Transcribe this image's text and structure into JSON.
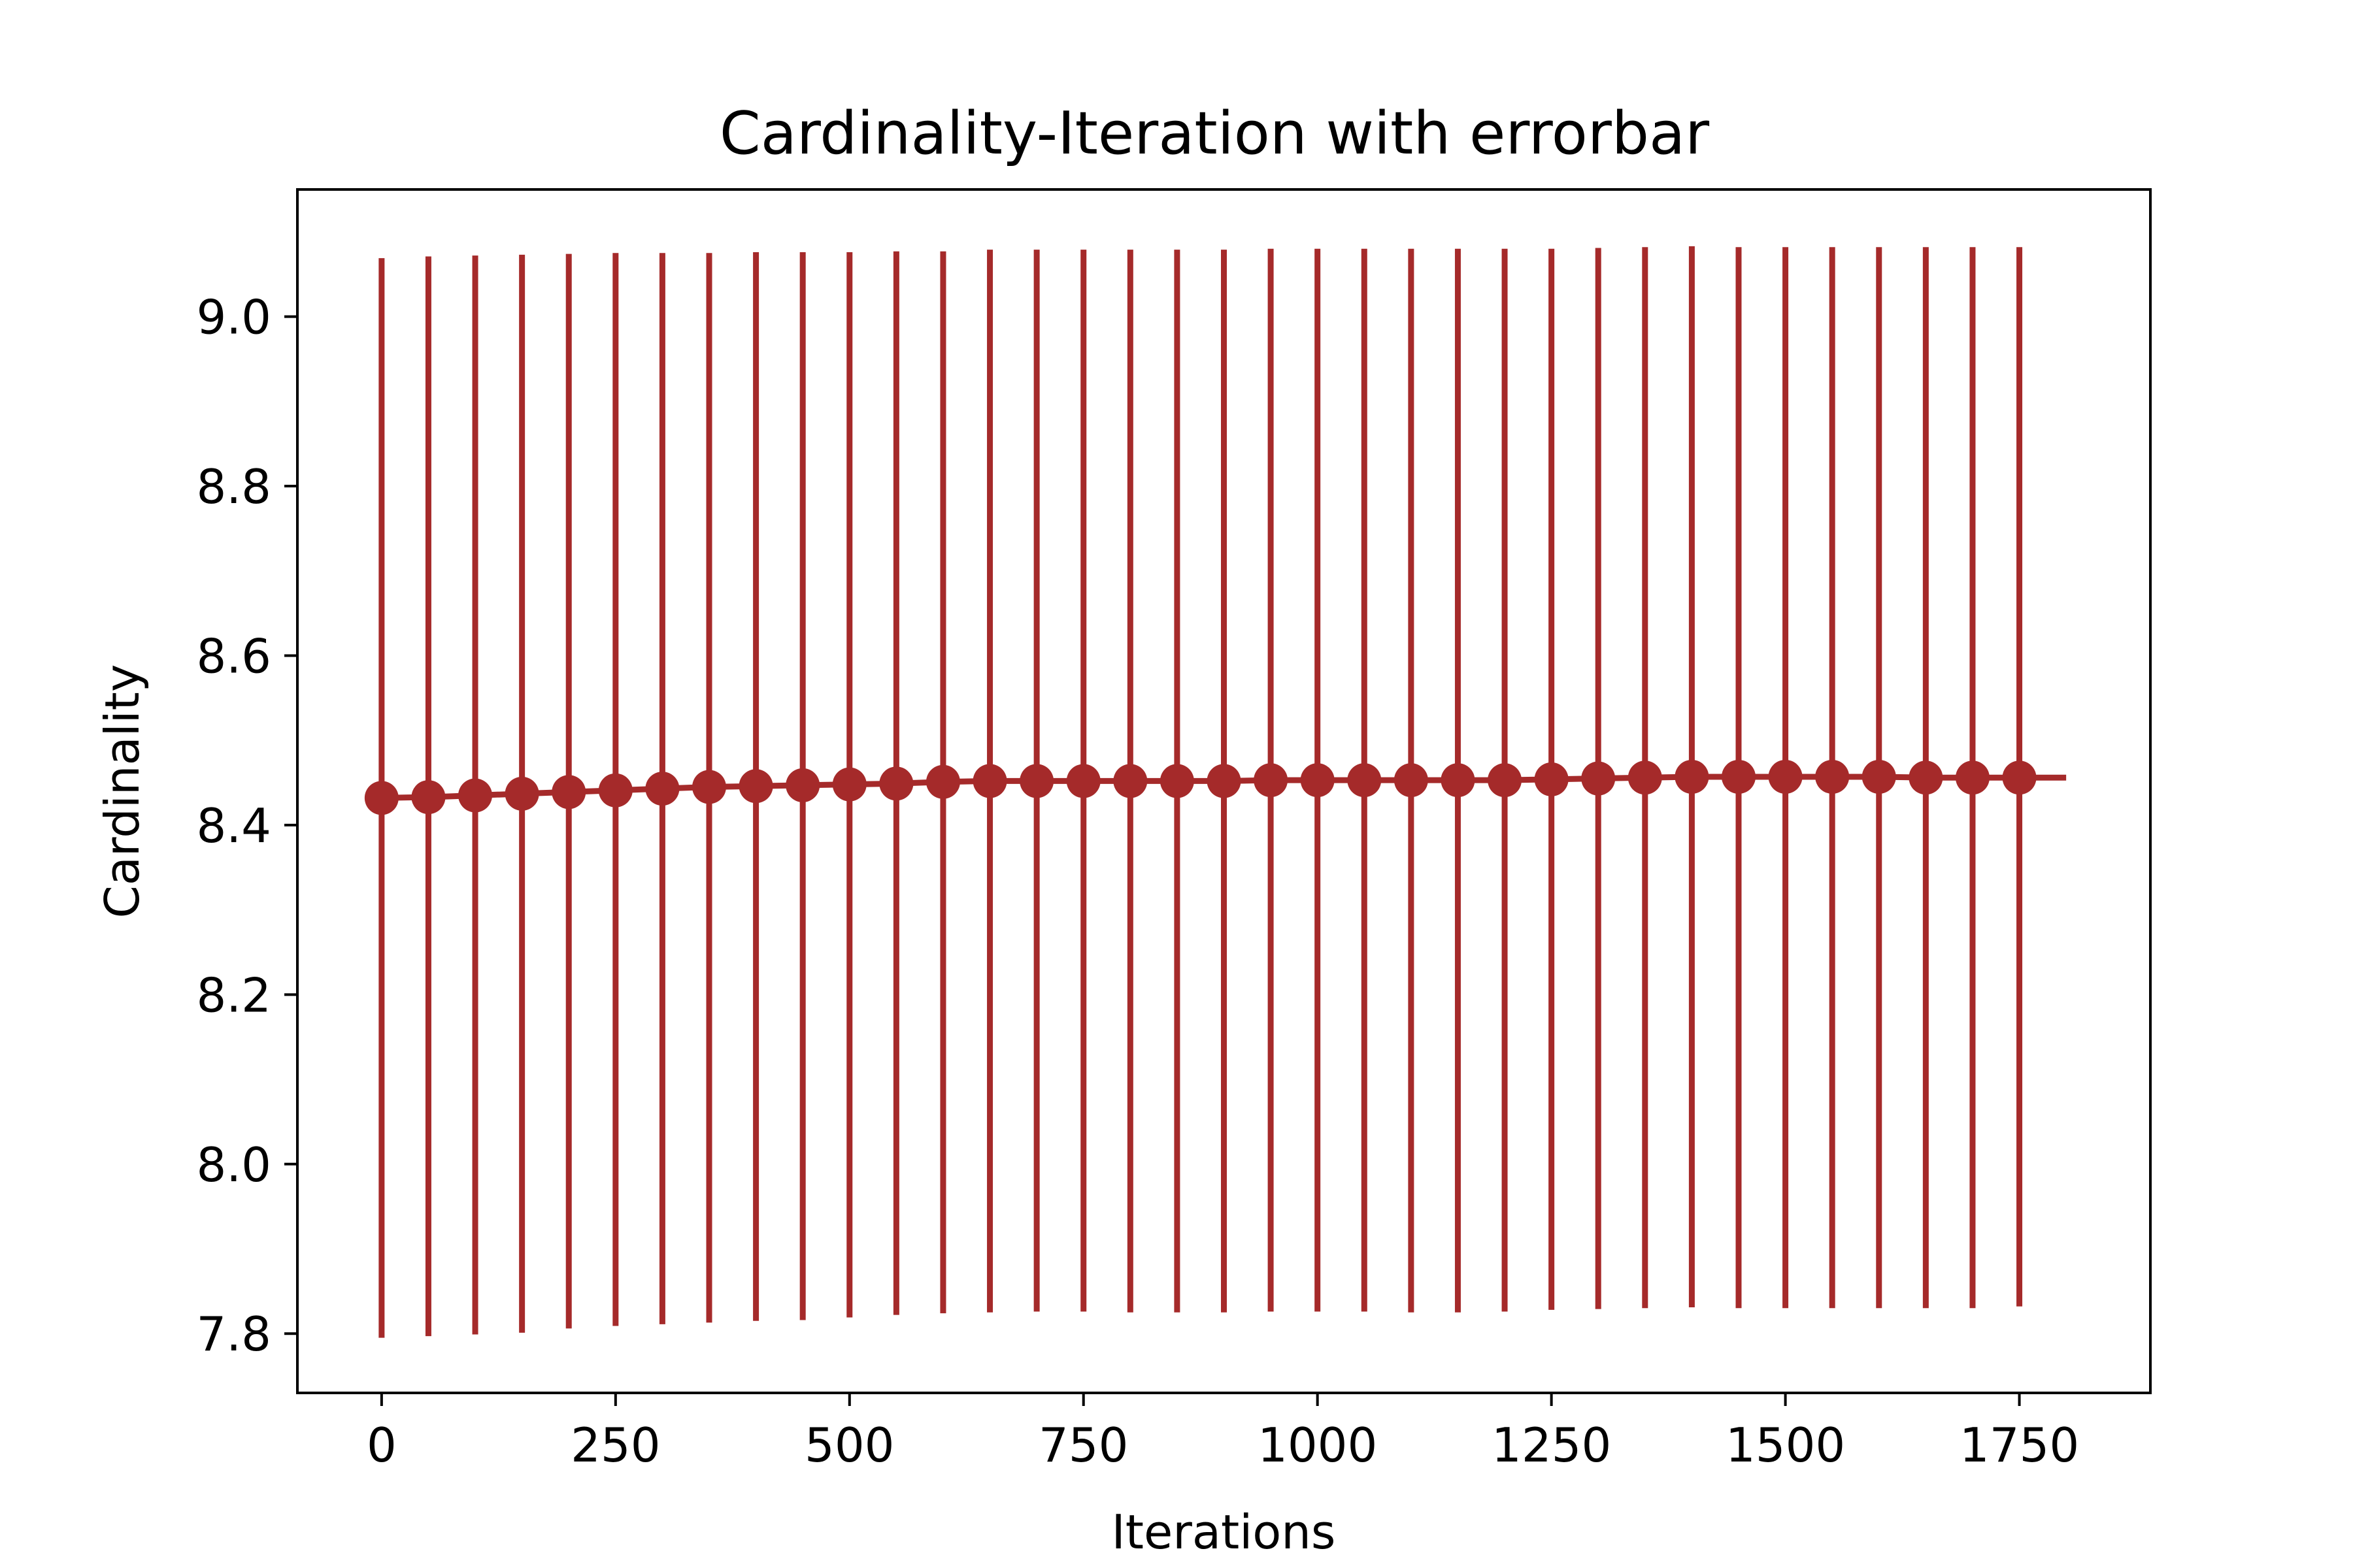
{
  "chart_data": {
    "type": "line",
    "title": "Cardinality-Iteration with errorbar",
    "xlabel": "Iterations",
    "ylabel": "Cardinality",
    "xlim": [
      -90,
      1890
    ],
    "ylim": [
      7.73,
      9.15
    ],
    "xticks": [
      0,
      250,
      500,
      750,
      1000,
      1250,
      1500,
      1750
    ],
    "xtick_labels": [
      "0",
      "250",
      "500",
      "750",
      "1000",
      "1250",
      "1500",
      "1750"
    ],
    "yticks": [
      7.8,
      8.0,
      8.2,
      8.4,
      8.6,
      8.8,
      9.0
    ],
    "ytick_labels": [
      "7.8",
      "8.0",
      "8.2",
      "8.4",
      "8.6",
      "8.8",
      "9.0"
    ],
    "grid": false,
    "legend": "none",
    "series": [
      {
        "color": "#a52a2a",
        "line_end_x": 1800,
        "x": [
          0,
          50,
          100,
          150,
          200,
          250,
          300,
          350,
          400,
          450,
          500,
          550,
          600,
          650,
          700,
          750,
          800,
          850,
          900,
          950,
          1000,
          1050,
          1100,
          1150,
          1200,
          1250,
          1300,
          1350,
          1400,
          1450,
          1500,
          1550,
          1600,
          1650,
          1700,
          1750
        ],
        "y": [
          8.432,
          8.433,
          8.435,
          8.437,
          8.439,
          8.441,
          8.443,
          8.445,
          8.446,
          8.447,
          8.448,
          8.449,
          8.451,
          8.452,
          8.452,
          8.452,
          8.452,
          8.452,
          8.452,
          8.453,
          8.453,
          8.453,
          8.453,
          8.453,
          8.453,
          8.454,
          8.455,
          8.456,
          8.457,
          8.457,
          8.457,
          8.457,
          8.457,
          8.456,
          8.456,
          8.456
        ],
        "err_low": [
          7.795,
          7.797,
          7.799,
          7.801,
          7.806,
          7.809,
          7.811,
          7.813,
          7.815,
          7.816,
          7.819,
          7.822,
          7.824,
          7.825,
          7.826,
          7.826,
          7.825,
          7.825,
          7.825,
          7.826,
          7.826,
          7.826,
          7.825,
          7.825,
          7.826,
          7.828,
          7.829,
          7.83,
          7.831,
          7.83,
          7.83,
          7.83,
          7.83,
          7.83,
          7.83,
          7.832
        ],
        "err_high": [
          9.069,
          9.071,
          9.072,
          9.073,
          9.074,
          9.075,
          9.075,
          9.075,
          9.076,
          9.076,
          9.076,
          9.077,
          9.077,
          9.079,
          9.079,
          9.079,
          9.079,
          9.079,
          9.079,
          9.08,
          9.08,
          9.08,
          9.08,
          9.08,
          9.08,
          9.08,
          9.081,
          9.082,
          9.083,
          9.082,
          9.082,
          9.082,
          9.082,
          9.082,
          9.082,
          9.082
        ]
      }
    ]
  }
}
